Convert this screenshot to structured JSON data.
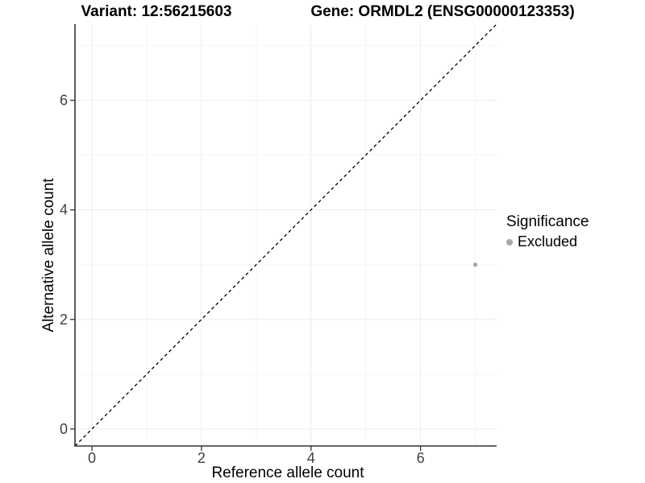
{
  "titles": {
    "variant": "Variant: 12:56215603",
    "gene": "Gene: ORMDL2 (ENSG00000123353)"
  },
  "chart_data": {
    "type": "scatter",
    "xlabel": "Reference allele count",
    "ylabel": "Alternative allele count",
    "xlim": [
      -0.31,
      7.39
    ],
    "ylim": [
      -0.31,
      7.39
    ],
    "x_ticks": [
      0,
      2,
      4,
      6
    ],
    "y_ticks": [
      0,
      2,
      4,
      6
    ],
    "x_minor_ticks": [
      1,
      3,
      5,
      7
    ],
    "y_minor_ticks": [
      1,
      3,
      5,
      7
    ],
    "grid": {
      "major": true,
      "minor": true
    },
    "points": [
      {
        "x": 7,
        "y": 3,
        "series": "Excluded"
      }
    ],
    "reference_line": {
      "slope": 1,
      "intercept": 0,
      "style": "dashed"
    },
    "legend": {
      "title": "Significance",
      "position": "right",
      "items": [
        {
          "label": "Excluded",
          "color": "#a8a8a8"
        }
      ]
    }
  },
  "colors": {
    "point": "#a8a8a8",
    "grid_major": "#ececec",
    "grid_minor": "#f5f5f5",
    "axis_line": "#333333",
    "tick_text": "#404040",
    "reference_line": "#000000",
    "background": "#ffffff"
  }
}
